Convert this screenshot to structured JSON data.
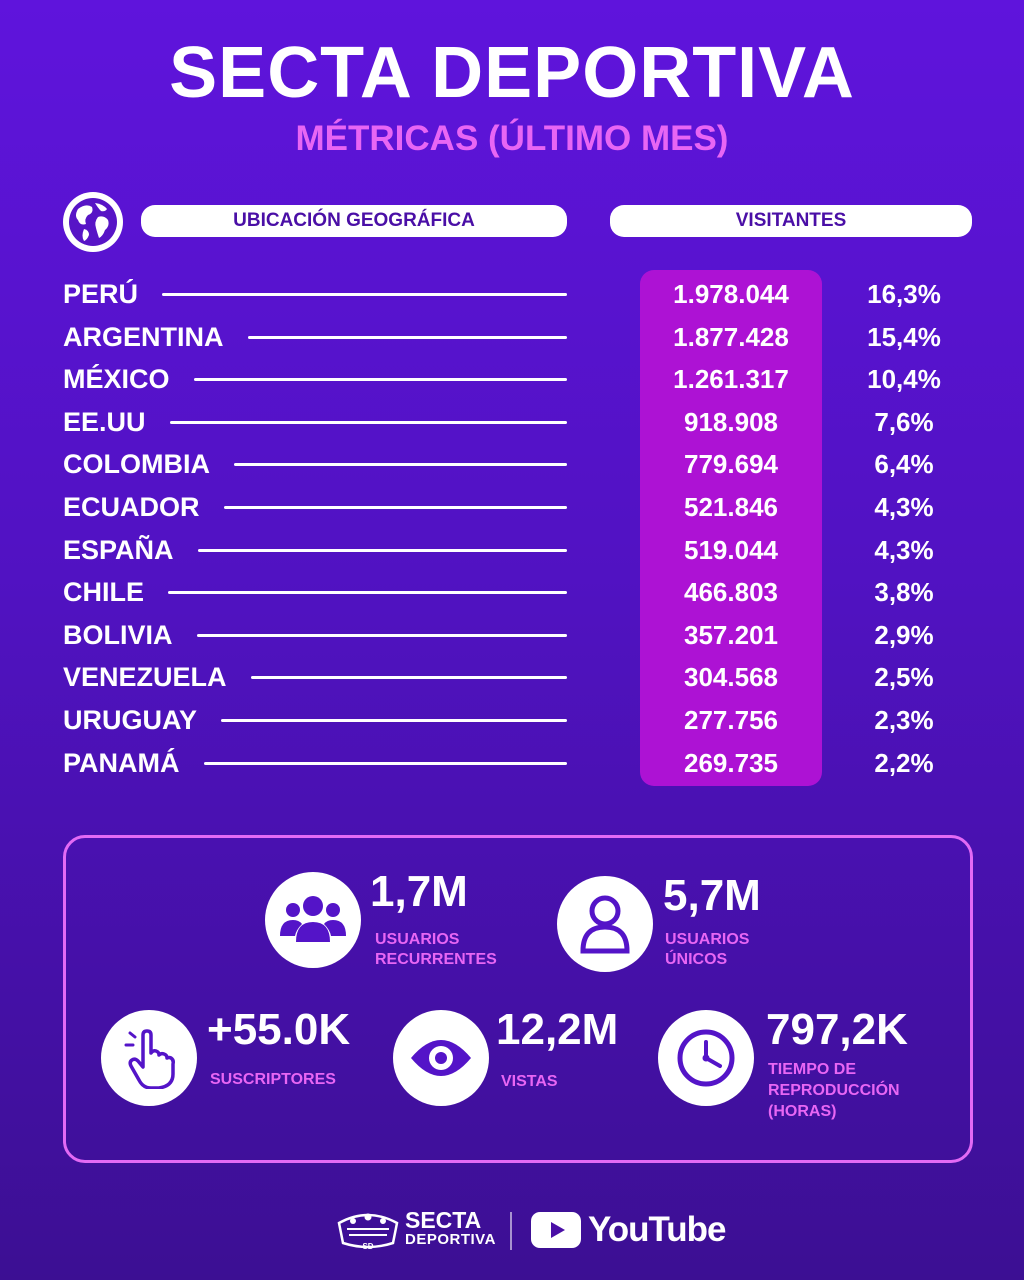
{
  "header": {
    "title": "SECTA DEPORTIVA",
    "subtitle": "MÉTRICAS (ÚLTIMO MES)"
  },
  "columns": {
    "geo": "UBICACIÓN GEOGRÁFICA",
    "visitors": "VISITANTES"
  },
  "rows": [
    {
      "country": "PERÚ",
      "visitors": "1.978.044",
      "percent": "16,3%"
    },
    {
      "country": "ARGENTINA",
      "visitors": "1.877.428",
      "percent": "15,4%"
    },
    {
      "country": "MÉXICO",
      "visitors": "1.261.317",
      "percent": "10,4%"
    },
    {
      "country": "EE.UU",
      "visitors": "918.908",
      "percent": "7,6%"
    },
    {
      "country": "COLOMBIA",
      "visitors": "779.694",
      "percent": "6,4%"
    },
    {
      "country": "ECUADOR",
      "visitors": "521.846",
      "percent": "4,3%"
    },
    {
      "country": "ESPAÑA",
      "visitors": "519.044",
      "percent": "4,3%"
    },
    {
      "country": "CHILE",
      "visitors": "466.803",
      "percent": "3,8%"
    },
    {
      "country": "BOLIVIA",
      "visitors": "357.201",
      "percent": "2,9%"
    },
    {
      "country": "VENEZUELA",
      "visitors": "304.568",
      "percent": "2,5%"
    },
    {
      "country": "URUGUAY",
      "visitors": "277.756",
      "percent": "2,3%"
    },
    {
      "country": "PANAMÁ",
      "visitors": "269.735",
      "percent": "2,2%"
    }
  ],
  "stats": {
    "recurring": {
      "value": "1,7M",
      "label_1": "USUARIOS",
      "label_2": "RECURRENTES",
      "icon": "users-group-icon"
    },
    "unique": {
      "value": "5,7M",
      "label_1": "USUARIOS",
      "label_2": "ÚNICOS",
      "icon": "user-icon"
    },
    "subscribers": {
      "value": "+55.0K",
      "label_1": "SUSCRIPTORES",
      "icon": "click-hand-icon"
    },
    "views": {
      "value": "12,2M",
      "label_1": "VISTAS",
      "icon": "eye-icon"
    },
    "watch_time": {
      "value": "797,2K",
      "label_1": "TIEMPO DE",
      "label_2": "REPRODUCCIÓN",
      "label_3": "(HORAS)",
      "icon": "clock-icon"
    }
  },
  "footer": {
    "brand_line1": "SECTA",
    "brand_line2": "DEPORTIVA",
    "logo_text": "SD",
    "platform": "YouTube"
  },
  "colors": {
    "background": "#5414c8",
    "accent_pink": "#e866f4",
    "visitors_column": "#ad12d4"
  }
}
